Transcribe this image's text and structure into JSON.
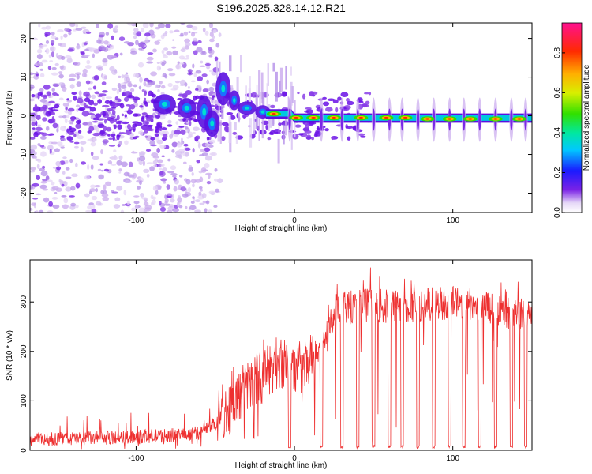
{
  "title": "S196.2025.328.14.12.R21",
  "colors": {
    "axis": "#000000",
    "snr_line": "#ee3030",
    "background": "#ffffff"
  },
  "chart_data": [
    {
      "type": "heatmap",
      "name": "spectrogram",
      "xlabel": "Height of straight line (km)",
      "ylabel": "Frequency (Hz)",
      "xlim": [
        -167,
        150
      ],
      "ylim": [
        -25,
        24
      ],
      "xticks": [
        -100,
        0,
        100
      ],
      "yticks": [
        -20,
        -10,
        0,
        10,
        20
      ],
      "carrier_tones": [
        {
          "x": -13,
          "freq": 0.5
        },
        {
          "x": 1,
          "freq": -0.5
        },
        {
          "x": 12,
          "freq": -0.5
        },
        {
          "x": 25,
          "freq": -0.5
        },
        {
          "x": 42,
          "freq": -0.5
        },
        {
          "x": 58,
          "freq": -0.5
        },
        {
          "x": 70,
          "freq": -0.5
        },
        {
          "x": 84,
          "freq": -0.8
        },
        {
          "x": 98,
          "freq": -0.8
        },
        {
          "x": 111,
          "freq": -0.8
        },
        {
          "x": 127,
          "freq": -0.8
        },
        {
          "x": 142,
          "freq": -0.8
        }
      ]
    },
    {
      "type": "colorbar",
      "name": "amplitude-scale",
      "label": "Normalized spectral amplitude",
      "range": [
        0,
        0.95
      ],
      "ticks": [
        0.0,
        0.2,
        0.4,
        0.6,
        0.8
      ],
      "tick_labels": [
        "0.0",
        "0.2",
        "0.4",
        "0.6",
        "0.8"
      ]
    },
    {
      "type": "line",
      "name": "snr",
      "xlabel": "Height of straight line (km)",
      "ylabel": "SNR (10 * v/v)",
      "xlim": [
        -167,
        150
      ],
      "ylim": [
        0,
        385
      ],
      "xticks": [
        -100,
        0,
        100
      ],
      "yticks": [
        0,
        100,
        200,
        300
      ],
      "envelope": [
        {
          "x": -167,
          "y": 22
        },
        {
          "x": -120,
          "y": 25
        },
        {
          "x": -80,
          "y": 30
        },
        {
          "x": -60,
          "y": 35
        },
        {
          "x": -50,
          "y": 55
        },
        {
          "x": -40,
          "y": 90
        },
        {
          "x": -30,
          "y": 130
        },
        {
          "x": -20,
          "y": 150
        },
        {
          "x": -10,
          "y": 180
        },
        {
          "x": 0,
          "y": 165
        },
        {
          "x": 10,
          "y": 170
        },
        {
          "x": 18,
          "y": 230
        },
        {
          "x": 25,
          "y": 280
        },
        {
          "x": 40,
          "y": 295
        },
        {
          "x": 60,
          "y": 290
        },
        {
          "x": 80,
          "y": 295
        },
        {
          "x": 100,
          "y": 300
        },
        {
          "x": 120,
          "y": 295
        },
        {
          "x": 140,
          "y": 270
        },
        {
          "x": 150,
          "y": 280
        }
      ],
      "dropouts_x": [
        -3,
        17,
        30,
        40,
        50,
        60,
        68,
        78,
        88,
        98,
        107,
        117,
        127,
        137,
        146
      ]
    }
  ]
}
